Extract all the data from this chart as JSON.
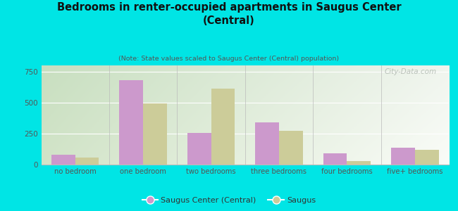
{
  "title": "Bedrooms in renter-occupied apartments in Saugus Center\n(Central)",
  "subtitle": "(Note: State values scaled to Saugus Center (Central) population)",
  "categories": [
    "no bedroom",
    "one bedroom",
    "two bedrooms",
    "three bedrooms",
    "four bedrooms",
    "five+ bedrooms"
  ],
  "saugus_center": [
    80,
    680,
    255,
    340,
    90,
    135
  ],
  "saugus": [
    55,
    495,
    610,
    275,
    30,
    120
  ],
  "color_saugus_center": "#cc99cc",
  "color_saugus": "#cccc99",
  "background_outer": "#00e5e5",
  "bg_top_left": "#c8dfc0",
  "bg_top_right": "#f0f5ee",
  "bg_bottom_right": "#fafaf5",
  "ylim": [
    0,
    800
  ],
  "yticks": [
    0,
    250,
    500,
    750
  ],
  "bar_width": 0.35,
  "watermark": "City-Data.com",
  "legend_saugus_center": "Saugus Center (Central)",
  "legend_saugus": "Saugus"
}
